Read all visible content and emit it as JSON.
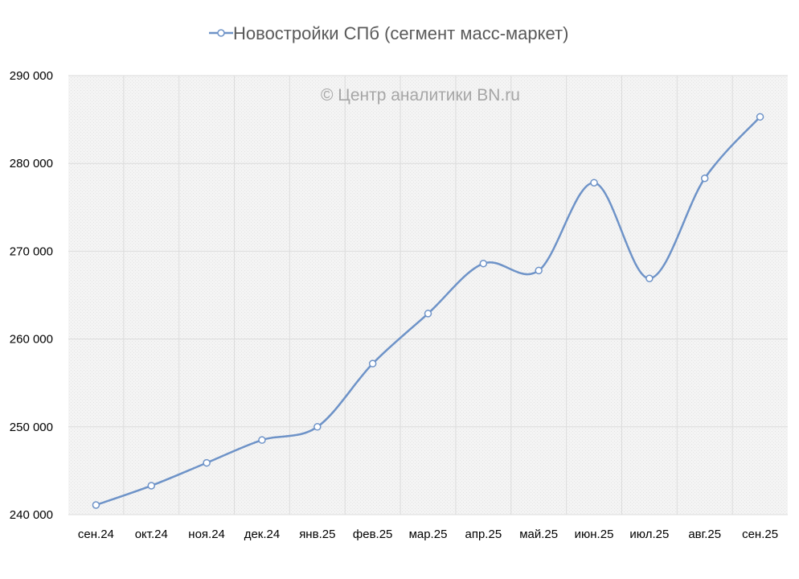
{
  "chart_data": {
    "type": "line",
    "title": "",
    "watermark": "© Центр аналитики BN.ru",
    "categories": [
      "сен.24",
      "окт.24",
      "ноя.24",
      "дек.24",
      "янв.25",
      "фев.25",
      "мар.25",
      "апр.25",
      "май.25",
      "июн.25",
      "июл.25",
      "авг.25",
      "сен.25"
    ],
    "series": [
      {
        "name": "Новостройки СПб (сегмент масс-маркет)",
        "values": [
          241100,
          243300,
          245900,
          248500,
          250000,
          257200,
          262900,
          268600,
          267800,
          277800,
          266900,
          278300,
          285300
        ],
        "color": "#6e93c8"
      }
    ],
    "yticks": [
      "240 000",
      "250 000",
      "260 000",
      "270 000",
      "280 000",
      "290 000"
    ],
    "ylim": [
      240000,
      290000
    ],
    "xlabel": "",
    "ylabel": "",
    "grid": true,
    "legend_position": "top",
    "plot_background": "#f0f0f0",
    "grid_color": "#dcdcdc",
    "marker_fill": "#ffffff"
  }
}
